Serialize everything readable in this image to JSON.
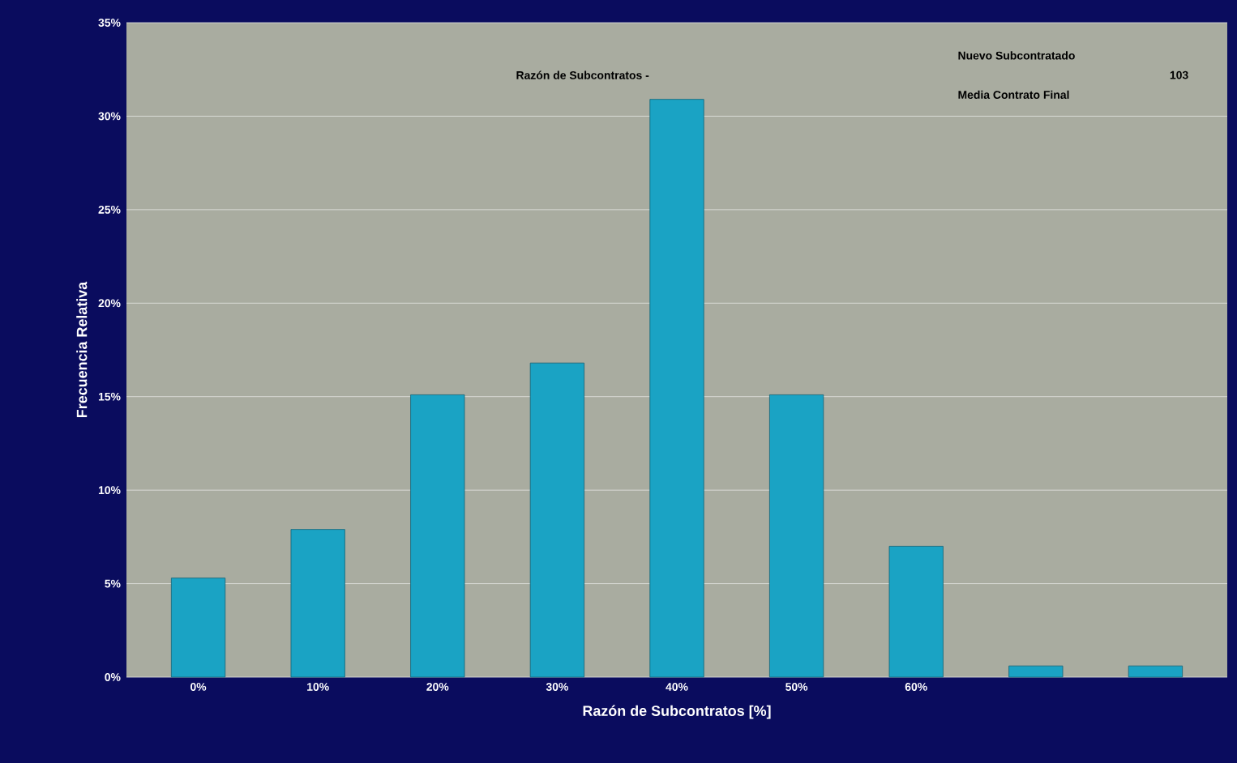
{
  "chart_data": {
    "type": "bar",
    "xlabel": "Razón de Subcontratos [%]",
    "ylabel": "Frecuencia Relativa",
    "categories": [
      "0%",
      "10%",
      "20%",
      "30%",
      "40%",
      "50%",
      "60%",
      null,
      null
    ],
    "values": [
      5.3,
      7.9,
      15.1,
      16.8,
      30.9,
      15.1,
      7.0,
      0.6,
      0.6
    ],
    "color": "#1aa3c4",
    "ylim": [
      0,
      35
    ],
    "yticks": [
      {
        "value": 0,
        "label": "0%"
      },
      {
        "value": 5,
        "label": "5%"
      },
      {
        "value": 10,
        "label": "10%"
      },
      {
        "value": 15,
        "label": "15%"
      },
      {
        "value": 20,
        "label": "20%"
      },
      {
        "value": 25,
        "label": "25%"
      },
      {
        "value": 30,
        "label": "30%"
      },
      {
        "value": 35,
        "label": "35%"
      }
    ],
    "grid": "y",
    "annotations": [
      "Razón de Subcontratos -",
      "Nuevo Subcontratado",
      "Media Contrato Final",
      "103"
    ]
  }
}
